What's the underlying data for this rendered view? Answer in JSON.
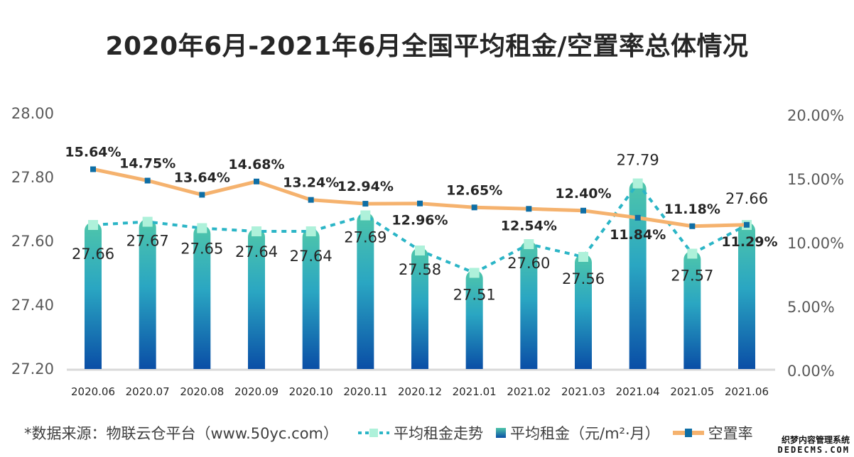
{
  "chart_data": {
    "type": "bar",
    "title": "2020年6月-2021年6月全国平均租金/空置率总体情况",
    "categories": [
      "2020.06",
      "2020.07",
      "2020.08",
      "2020.09",
      "2020.10",
      "2020.11",
      "2020.12",
      "2021.01",
      "2021.02",
      "2021.03",
      "2021.04",
      "2021.05",
      "2021.06"
    ],
    "series": [
      {
        "name": "平均租金（元/m²·月）",
        "type": "bar",
        "axis": "left",
        "values": [
          27.66,
          27.67,
          27.65,
          27.64,
          27.64,
          27.69,
          27.58,
          27.51,
          27.6,
          27.56,
          27.79,
          27.57,
          27.66
        ],
        "labels": [
          "27.66",
          "27.67",
          "27.65",
          "27.64",
          "27.64",
          "27.69",
          "27.58",
          "27.51",
          "27.60",
          "27.56",
          "27.79",
          "27.57",
          "27.66"
        ]
      },
      {
        "name": "平均租金走势",
        "type": "line",
        "style": "dashed",
        "axis": "left",
        "values": [
          27.66,
          27.67,
          27.65,
          27.64,
          27.64,
          27.69,
          27.58,
          27.51,
          27.6,
          27.56,
          27.79,
          27.57,
          27.66
        ]
      },
      {
        "name": "空置率",
        "type": "line",
        "axis": "right",
        "unit": "%",
        "values": [
          15.64,
          14.75,
          13.64,
          14.68,
          13.24,
          12.94,
          12.96,
          12.65,
          12.54,
          12.4,
          11.84,
          11.18,
          11.29
        ],
        "labels": [
          "15.64%",
          "14.75%",
          "13.64%",
          "14.68%",
          "13.24%",
          "12.94%",
          "12.96%",
          "12.65%",
          "12.54%",
          "12.40%",
          "11.84%",
          "11.18%",
          "11.29%"
        ]
      }
    ],
    "left_axis": {
      "ylim": [
        27.2,
        28.0
      ],
      "ticks": [
        "27.20",
        "27.40",
        "27.60",
        "27.80",
        "28.00"
      ]
    },
    "right_axis": {
      "ylim": [
        0,
        20
      ],
      "ticks": [
        "0.00%",
        "5.00%",
        "10.00%",
        "15.00%",
        "20.00%"
      ]
    },
    "grid": false,
    "legend_position": "bottom",
    "colors": {
      "bar_top": "#4cc3a8",
      "bar_bottom": "#0a4ea6",
      "trend_line": "#2bb5c6",
      "trend_marker": "#aef1da",
      "vacancy_line": "#f5b26e",
      "vacancy_marker": "#0e6ea5"
    }
  },
  "footer": {
    "source": "*数据来源：物联云仓平台（www.50yc.com）",
    "legend": [
      {
        "label": "平均租金走势",
        "icon": "dashed-line-square-marker"
      },
      {
        "label": "平均租金（元/m²·月）",
        "icon": "gradient-square"
      },
      {
        "label": "空置率",
        "icon": "line-square-marker"
      }
    ]
  },
  "watermark": {
    "line1": "织梦内容管理系统",
    "line2": "DEDECMS.COM"
  }
}
